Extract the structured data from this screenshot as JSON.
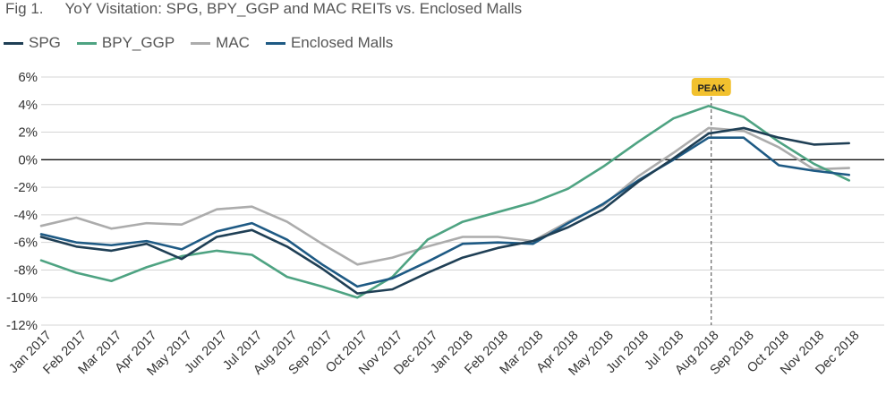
{
  "figure": {
    "number": "Fig 1.",
    "title": "YoY Visitation: SPG, BPY_GGP and MAC REITs vs. Enclosed Malls"
  },
  "colors": {
    "SPG": "#1f3f55",
    "BPY_GGP": "#4ea382",
    "MAC": "#acacac",
    "Enclosed Malls": "#1e5a84",
    "peak_badge": "#f2c12e"
  },
  "chart_data": {
    "type": "line",
    "title": "YoY Visitation: SPG, BPY_GGP and MAC REITs vs. Enclosed Malls",
    "xlabel": "",
    "ylabel": "",
    "x_ticks": [
      "Jan 2017",
      "Feb 2017",
      "Mar 2017",
      "Apr 2017",
      "May 2017",
      "Jun 2017",
      "Jul 2017",
      "Aug 2017",
      "Sep 2017",
      "Oct 2017",
      "Nov 2017",
      "Dec 2017",
      "Jan 2018",
      "Feb 2018",
      "Mar 2018",
      "Apr 2018",
      "May 2018",
      "Jun 2018",
      "Jul 2018",
      "Aug 2018",
      "Sep 2018",
      "Oct 2018",
      "Nov 2018",
      "Dec 2018"
    ],
    "y_ticks": [
      "6%",
      "4%",
      "2%",
      "0%",
      "-2%",
      "-4%",
      "-6%",
      "-8%",
      "-10%",
      "-12%"
    ],
    "ylim": [
      -12,
      6
    ],
    "grid": true,
    "legend": "top-left",
    "annotation": {
      "label": "PEAK",
      "x": "Aug 2018"
    },
    "series": [
      {
        "name": "SPG",
        "values": [
          -5.6,
          -6.3,
          -6.6,
          -6.1,
          -7.2,
          -5.6,
          -5.1,
          -6.3,
          -7.9,
          -9.7,
          -9.4,
          -8.2,
          -7.1,
          -6.4,
          -5.9,
          -4.9,
          -3.6,
          -1.6,
          0.1,
          1.9,
          2.3,
          1.6,
          1.1,
          1.2
        ]
      },
      {
        "name": "BPY_GGP",
        "values": [
          -7.3,
          -8.2,
          -8.8,
          -7.8,
          -7.0,
          -6.6,
          -6.9,
          -8.5,
          -9.2,
          -10.0,
          -8.5,
          -5.8,
          -4.5,
          -3.8,
          -3.1,
          -2.1,
          -0.5,
          1.3,
          3.0,
          3.9,
          3.1,
          1.3,
          -0.3,
          -1.5
        ]
      },
      {
        "name": "MAC",
        "values": [
          -4.8,
          -4.2,
          -5.0,
          -4.6,
          -4.7,
          -3.6,
          -3.4,
          -4.5,
          -6.1,
          -7.6,
          -7.1,
          -6.3,
          -5.6,
          -5.6,
          -5.9,
          -4.5,
          -3.3,
          -1.2,
          0.5,
          2.3,
          2.1,
          0.9,
          -0.7,
          -0.6
        ]
      },
      {
        "name": "Enclosed Malls",
        "values": [
          -5.4,
          -6.0,
          -6.2,
          -5.9,
          -6.5,
          -5.2,
          -4.6,
          -5.8,
          -7.6,
          -9.2,
          -8.6,
          -7.4,
          -6.1,
          -6.0,
          -6.1,
          -4.6,
          -3.2,
          -1.5,
          0.0,
          1.6,
          1.6,
          -0.4,
          -0.8,
          -1.1
        ]
      }
    ]
  }
}
